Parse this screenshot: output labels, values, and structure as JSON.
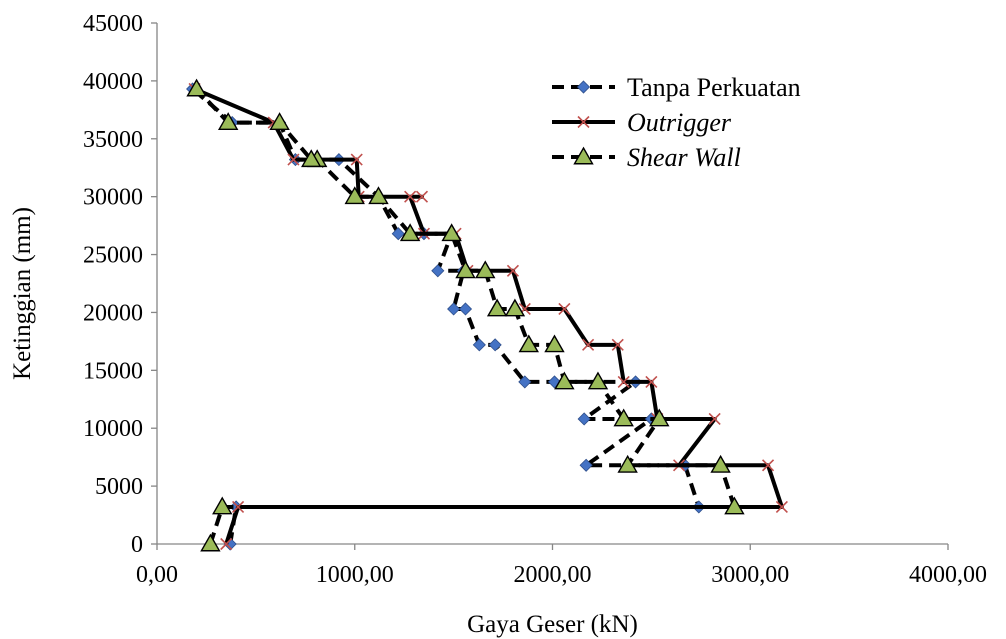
{
  "chart_data": {
    "type": "line",
    "title": "",
    "xlabel": "Gaya Geser (kN)",
    "ylabel": "Ketinggian (mm)",
    "xlim": [
      0,
      4000
    ],
    "ylim": [
      0,
      45000
    ],
    "x_ticks": [
      "0,00",
      "1000,00",
      "2000,00",
      "3000,00",
      "4000,00"
    ],
    "y_ticks": [
      "0",
      "5000",
      "10000",
      "15000",
      "20000",
      "25000",
      "30000",
      "35000",
      "40000",
      "45000"
    ],
    "grid": false,
    "legend_position": "top-right",
    "series": [
      {
        "name": "Tanpa Perkuatan",
        "italic": false,
        "color": "#000000",
        "marker_color": "#4472C4",
        "marker": "diamond",
        "line_style": "dashed",
        "x": [
          370,
          400,
          2740,
          2670,
          2170,
          2500,
          2160,
          2420,
          2010,
          1860,
          1710,
          1630,
          1560,
          1500,
          1550,
          1420,
          1490,
          1350,
          1220,
          1120,
          920,
          700,
          620,
          380,
          180
        ],
        "y": [
          0,
          3200,
          3200,
          6800,
          6800,
          10800,
          10800,
          14000,
          14000,
          14000,
          17200,
          17200,
          20300,
          20300,
          23600,
          23600,
          26800,
          26800,
          26800,
          30000,
          33200,
          33200,
          36400,
          36400,
          39300
        ]
      },
      {
        "name": "Outrigger",
        "italic": true,
        "color": "#000000",
        "marker_color": "#C0504D",
        "marker": "x",
        "line_style": "solid",
        "x": [
          350,
          410,
          3160,
          3090,
          2640,
          2820,
          2530,
          2500,
          2360,
          2330,
          2180,
          2060,
          1860,
          1800,
          1570,
          1510,
          1350,
          1280,
          1340,
          1020,
          1010,
          690,
          590,
          190
        ],
        "y": [
          0,
          3200,
          3200,
          6800,
          6800,
          10800,
          10800,
          14000,
          14000,
          17200,
          17200,
          20300,
          20300,
          23600,
          23600,
          26800,
          26800,
          30000,
          30000,
          30000,
          33200,
          33200,
          36400,
          39300
        ]
      },
      {
        "name": "Shear Wall",
        "italic": true,
        "color": "#000000",
        "marker_color": "#9BBB59",
        "marker": "triangle",
        "line_style": "dashed",
        "x": [
          270,
          330,
          2920,
          2850,
          2380,
          2540,
          2360,
          2230,
          2060,
          2010,
          1880,
          1810,
          1720,
          1660,
          1560,
          1490,
          1280,
          1120,
          1000,
          810,
          780,
          620,
          360,
          200
        ],
        "y": [
          0,
          3200,
          3200,
          6800,
          6800,
          10800,
          10800,
          14000,
          14000,
          17200,
          17200,
          20300,
          20300,
          23600,
          23600,
          26800,
          26800,
          30000,
          30000,
          33200,
          33200,
          36400,
          36400,
          39300
        ]
      }
    ]
  }
}
